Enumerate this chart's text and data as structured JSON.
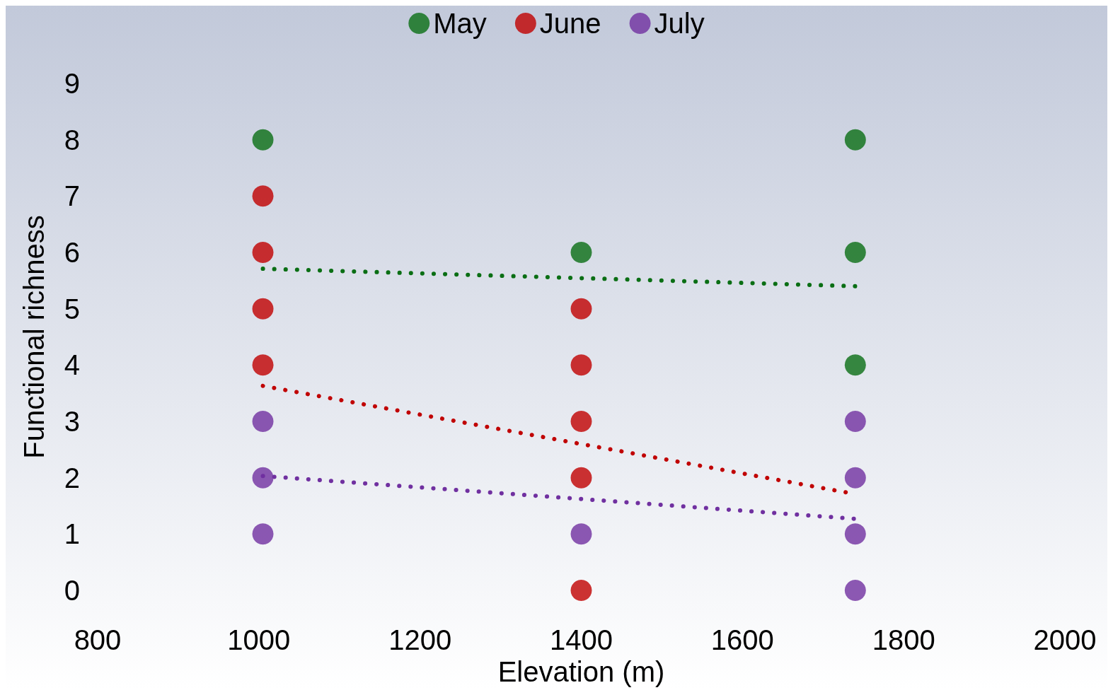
{
  "chart_data": {
    "type": "scatter",
    "xlabel": "Elevation (m)",
    "ylabel": "Functional richness",
    "series": [
      {
        "name": "May",
        "marker": "circle",
        "color": "#0a6e14",
        "x": [
          1005,
          1400,
          1740,
          1740,
          1740
        ],
        "values": [
          8,
          6,
          8,
          6,
          4
        ]
      },
      {
        "name": "June",
        "marker": "circle",
        "color": "#c00000",
        "x": [
          1005,
          1005,
          1005,
          1005,
          1400,
          1400,
          1400,
          1400,
          1400
        ],
        "values": [
          7,
          6,
          5,
          4,
          5,
          4,
          3,
          2,
          0
        ]
      },
      {
        "name": "July",
        "marker": "circle",
        "color": "#7030a0",
        "x": [
          1005,
          1005,
          1005,
          1400,
          1740,
          1740,
          1740,
          1740
        ],
        "values": [
          3,
          2,
          1,
          1,
          3,
          2,
          1,
          0
        ]
      },
      {
        "type": "line",
        "marker": "none",
        "color": "#0a6e14",
        "line_style": "dotted",
        "x": [
          1005,
          1740
        ],
        "values": [
          5.71,
          5.4
        ]
      },
      {
        "type": "line",
        "marker": "none",
        "color": "#c00000",
        "line_style": "dotted",
        "x": [
          1005,
          1740
        ],
        "values": [
          3.63,
          1.71
        ]
      },
      {
        "type": "line",
        "marker": "none",
        "color": "#7030a0",
        "line_style": "dotted",
        "x": [
          1005,
          1740
        ],
        "values": [
          2.03,
          1.27
        ]
      }
    ],
    "xlim": [
      800,
      2000
    ],
    "xticks": [
      800,
      1000,
      1200,
      1400,
      1600,
      1800,
      2000
    ],
    "ylim": [
      0,
      9
    ],
    "yticks": [
      0,
      1,
      2,
      3,
      4,
      5,
      6,
      7,
      8,
      9
    ],
    "grid": false,
    "legend": "top"
  }
}
